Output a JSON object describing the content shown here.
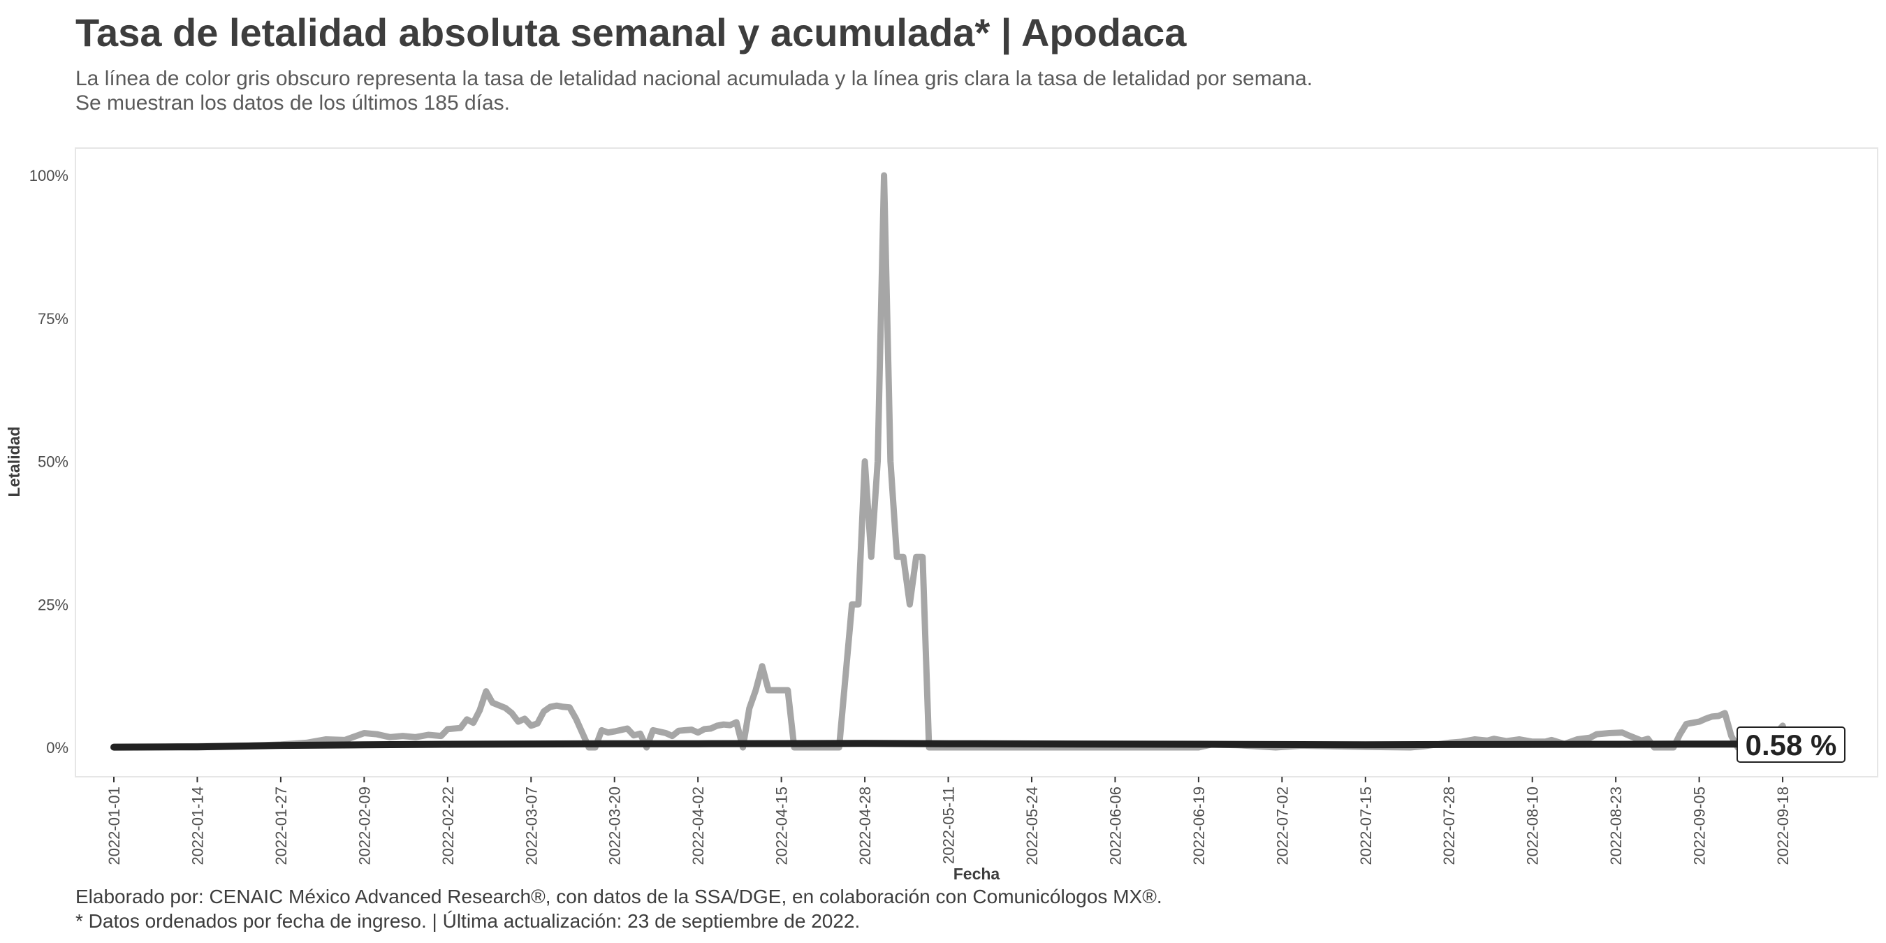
{
  "title": "Tasa de letalidad absoluta semanal y acumulada* | Apodaca",
  "subtitle_line1": "La línea de color gris obscuro representa la tasa de letalidad nacional acumulada y la línea gris clara la tasa de letalidad por semana.",
  "subtitle_line2": "Se muestran los datos de los últimos 185 días.",
  "caption_line1": "Elaborado por: CENAIC México Advanced Research®, con datos de la SSA/DGE, en colaboración con Comunicólogos MX®.",
  "caption_line2": "* Datos ordenados por fecha de ingreso. | Última actualización: 23 de septiembre de 2022.",
  "colors": {
    "weekly": "#a6a6a6",
    "cumulative": "#222222",
    "text": "#3d3d3d",
    "panel_border": "#e6e6e6"
  },
  "chart_data": {
    "type": "line",
    "xlabel": "Fecha",
    "ylabel": "Letalidad",
    "x_start": "2022-01-01",
    "x_end": "2022-09-23",
    "ylim": [
      -5,
      105
    ],
    "yticks": [
      0,
      25,
      50,
      75,
      100
    ],
    "ytick_labels": [
      "0%",
      "25%",
      "50%",
      "75%",
      "100%"
    ],
    "xtick_labels": [
      "2022-01-01",
      "2022-01-14",
      "2022-01-27",
      "2022-02-09",
      "2022-02-22",
      "2022-03-07",
      "2022-03-20",
      "2022-04-02",
      "2022-04-15",
      "2022-04-28",
      "2022-05-11",
      "2022-05-24",
      "2022-06-06",
      "2022-06-19",
      "2022-07-02",
      "2022-07-15",
      "2022-07-28",
      "2022-08-10",
      "2022-08-23",
      "2022-09-05",
      "2022-09-18"
    ],
    "grid": false,
    "end_label": "0.58 %",
    "series": [
      {
        "role": "weekly",
        "points": [
          [
            "2022-01-01",
            0
          ],
          [
            "2022-01-14",
            0.2
          ],
          [
            "2022-01-22",
            0.3
          ],
          [
            "2022-01-27",
            0.5
          ],
          [
            "2022-01-31",
            0.8
          ],
          [
            "2022-02-03",
            1.4
          ],
          [
            "2022-02-06",
            1.3
          ],
          [
            "2022-02-09",
            2.5
          ],
          [
            "2022-02-11",
            2.3
          ],
          [
            "2022-02-13",
            1.8
          ],
          [
            "2022-02-15",
            2.0
          ],
          [
            "2022-02-17",
            1.8
          ],
          [
            "2022-02-19",
            2.2
          ],
          [
            "2022-02-21",
            2.0
          ],
          [
            "2022-02-22",
            3.2
          ],
          [
            "2022-02-24",
            3.4
          ],
          [
            "2022-02-25",
            4.9
          ],
          [
            "2022-02-26",
            4.3
          ],
          [
            "2022-02-27",
            6.5
          ],
          [
            "2022-02-28",
            9.8
          ],
          [
            "2022-03-01",
            7.8
          ],
          [
            "2022-03-03",
            6.9
          ],
          [
            "2022-03-04",
            6.0
          ],
          [
            "2022-03-05",
            4.5
          ],
          [
            "2022-03-06",
            5.0
          ],
          [
            "2022-03-07",
            3.8
          ],
          [
            "2022-03-08",
            4.2
          ],
          [
            "2022-03-09",
            6.3
          ],
          [
            "2022-03-10",
            7.1
          ],
          [
            "2022-03-11",
            7.3
          ],
          [
            "2022-03-12",
            7.1
          ],
          [
            "2022-03-13",
            7.0
          ],
          [
            "2022-03-14",
            5.0
          ],
          [
            "2022-03-15",
            2.5
          ],
          [
            "2022-03-16",
            0
          ],
          [
            "2022-03-17",
            0
          ],
          [
            "2022-03-18",
            3.0
          ],
          [
            "2022-03-19",
            2.6
          ],
          [
            "2022-03-20",
            2.8
          ],
          [
            "2022-03-22",
            3.3
          ],
          [
            "2022-03-23",
            2.1
          ],
          [
            "2022-03-24",
            2.4
          ],
          [
            "2022-03-25",
            0
          ],
          [
            "2022-03-26",
            3.0
          ],
          [
            "2022-03-28",
            2.5
          ],
          [
            "2022-03-29",
            2.0
          ],
          [
            "2022-03-30",
            2.9
          ],
          [
            "2022-03-31",
            3.0
          ],
          [
            "2022-04-01",
            3.1
          ],
          [
            "2022-04-02",
            2.6
          ],
          [
            "2022-04-03",
            3.2
          ],
          [
            "2022-04-04",
            3.3
          ],
          [
            "2022-04-05",
            3.8
          ],
          [
            "2022-04-06",
            4.0
          ],
          [
            "2022-04-07",
            3.9
          ],
          [
            "2022-04-08",
            4.4
          ],
          [
            "2022-04-09",
            0
          ],
          [
            "2022-04-10",
            6.8
          ],
          [
            "2022-04-11",
            10.0
          ],
          [
            "2022-04-12",
            14.2
          ],
          [
            "2022-04-13",
            10.0
          ],
          [
            "2022-04-14",
            10.0
          ],
          [
            "2022-04-15",
            10.0
          ],
          [
            "2022-04-16",
            10.0
          ],
          [
            "2022-04-17",
            0
          ],
          [
            "2022-04-24",
            0
          ],
          [
            "2022-04-26",
            25.0
          ],
          [
            "2022-04-27",
            25.0
          ],
          [
            "2022-04-28",
            50.0
          ],
          [
            "2022-04-29",
            33.3
          ],
          [
            "2022-04-30",
            50.0
          ],
          [
            "2022-05-01",
            100.0
          ],
          [
            "2022-05-02",
            50.0
          ],
          [
            "2022-05-03",
            33.3
          ],
          [
            "2022-05-04",
            33.3
          ],
          [
            "2022-05-05",
            25.0
          ],
          [
            "2022-05-06",
            33.3
          ],
          [
            "2022-05-07",
            33.3
          ],
          [
            "2022-05-08",
            0
          ],
          [
            "2022-06-19",
            0
          ],
          [
            "2022-06-21",
            0.5
          ],
          [
            "2022-06-25",
            0.4
          ],
          [
            "2022-07-01",
            0
          ],
          [
            "2022-07-05",
            0.3
          ],
          [
            "2022-07-15",
            0.1
          ],
          [
            "2022-07-22",
            0
          ],
          [
            "2022-07-24",
            0.2
          ],
          [
            "2022-07-28",
            0.8
          ],
          [
            "2022-07-30",
            1.0
          ],
          [
            "2022-08-01",
            1.4
          ],
          [
            "2022-08-03",
            1.2
          ],
          [
            "2022-08-04",
            1.5
          ],
          [
            "2022-08-06",
            1.1
          ],
          [
            "2022-08-08",
            1.4
          ],
          [
            "2022-08-10",
            1.0
          ],
          [
            "2022-08-12",
            1.0
          ],
          [
            "2022-08-13",
            1.3
          ],
          [
            "2022-08-15",
            0.6
          ],
          [
            "2022-08-17",
            1.4
          ],
          [
            "2022-08-19",
            1.7
          ],
          [
            "2022-08-20",
            2.3
          ],
          [
            "2022-08-22",
            2.5
          ],
          [
            "2022-08-24",
            2.6
          ],
          [
            "2022-08-25",
            2.1
          ],
          [
            "2022-08-27",
            1.2
          ],
          [
            "2022-08-28",
            1.5
          ],
          [
            "2022-08-29",
            0
          ],
          [
            "2022-09-01",
            0
          ],
          [
            "2022-09-02",
            2.3
          ],
          [
            "2022-09-03",
            4.1
          ],
          [
            "2022-09-05",
            4.5
          ],
          [
            "2022-09-06",
            5.0
          ],
          [
            "2022-09-07",
            5.4
          ],
          [
            "2022-09-08",
            5.5
          ],
          [
            "2022-09-09",
            6.0
          ],
          [
            "2022-09-10",
            2.0
          ],
          [
            "2022-09-11",
            0
          ],
          [
            "2022-09-15",
            0.5
          ],
          [
            "2022-09-17",
            2.5
          ],
          [
            "2022-09-18",
            3.8
          ],
          [
            "2022-09-19",
            0
          ],
          [
            "2022-09-23",
            0
          ]
        ]
      },
      {
        "role": "cumulative",
        "points": [
          [
            "2022-01-01",
            0.05
          ],
          [
            "2022-01-14",
            0.1
          ],
          [
            "2022-01-27",
            0.35
          ],
          [
            "2022-02-09",
            0.45
          ],
          [
            "2022-02-22",
            0.55
          ],
          [
            "2022-03-07",
            0.6
          ],
          [
            "2022-03-20",
            0.65
          ],
          [
            "2022-04-02",
            0.65
          ],
          [
            "2022-04-28",
            0.7
          ],
          [
            "2022-05-11",
            0.65
          ],
          [
            "2022-06-19",
            0.55
          ],
          [
            "2022-07-15",
            0.45
          ],
          [
            "2022-07-28",
            0.5
          ],
          [
            "2022-08-23",
            0.55
          ],
          [
            "2022-09-05",
            0.58
          ],
          [
            "2022-09-23",
            0.58
          ]
        ]
      }
    ]
  }
}
